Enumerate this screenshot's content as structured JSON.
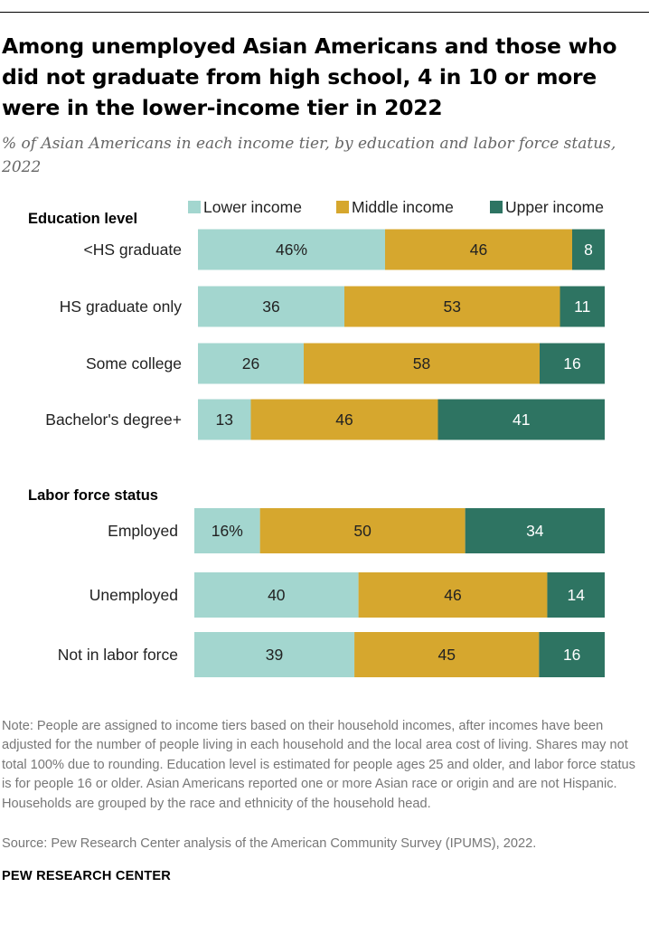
{
  "title": "Among unemployed Asian Americans and those who did not graduate from high school, 4 in 10 or more were in the lower-income tier in 2022",
  "subtitle": "% of Asian Americans in each income tier, by education and labor force status, 2022",
  "note": "Note: People are assigned to income tiers based on their household incomes, after incomes have been adjusted for the number of people living in each household and the local area cost of living. Shares may not total 100% due to rounding. Education level is estimated for people ages 25 and older, and labor force status is for people 16 or older. Asian Americans reported one or more Asian race or origin and are not Hispanic. Households are grouped by the race and ethnicity of the household head.",
  "source": "Source: Pew Research Center analysis of the American Community Survey (IPUMS), 2022.",
  "brand": "PEW RESEARCH CENTER",
  "chart_data": [
    {
      "type": "bar",
      "orientation": "horizontal",
      "stacked": true,
      "group_label": "Education level",
      "categories": [
        "<HS graduate",
        "HS graduate only",
        "Some college",
        "Bachelor's degree+"
      ],
      "series": [
        {
          "name": "Lower income",
          "color": "#a3d6cf",
          "values": [
            46,
            36,
            26,
            13
          ],
          "labels": [
            "46%",
            "36",
            "26",
            "13"
          ]
        },
        {
          "name": "Middle income",
          "color": "#d6a72e",
          "values": [
            46,
            53,
            58,
            46
          ],
          "labels": [
            "46",
            "53",
            "58",
            "46"
          ]
        },
        {
          "name": "Upper income",
          "color": "#2e7462",
          "values": [
            8,
            11,
            16,
            41
          ],
          "labels": [
            "8",
            "11",
            "16",
            "41"
          ]
        }
      ],
      "xlim": [
        0,
        100
      ],
      "legend": "top-right"
    },
    {
      "type": "bar",
      "orientation": "horizontal",
      "stacked": true,
      "group_label": "Labor force status",
      "categories": [
        "Employed",
        "Unemployed",
        "Not in labor force"
      ],
      "series": [
        {
          "name": "Lower income",
          "color": "#a3d6cf",
          "values": [
            16,
            40,
            39
          ],
          "labels": [
            "16%",
            "40",
            "39"
          ]
        },
        {
          "name": "Middle income",
          "color": "#d6a72e",
          "values": [
            50,
            46,
            45
          ],
          "labels": [
            "50",
            "46",
            "45"
          ]
        },
        {
          "name": "Upper income",
          "color": "#2e7462",
          "values": [
            34,
            14,
            16
          ],
          "labels": [
            "34",
            "14",
            "16"
          ]
        }
      ],
      "xlim": [
        0,
        100
      ]
    }
  ]
}
